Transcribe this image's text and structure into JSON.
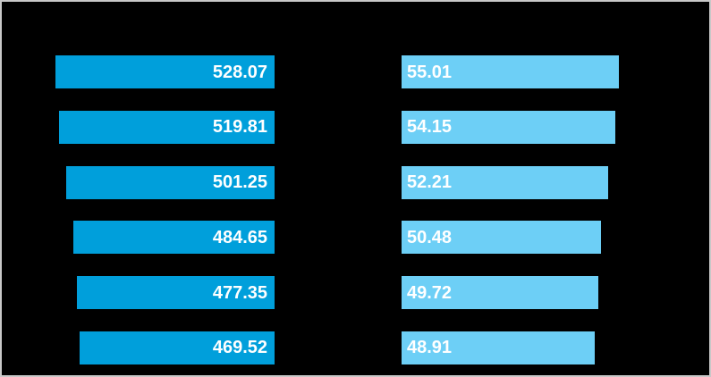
{
  "canvas": {
    "background_color": "#000000",
    "frame_border_color": "#c8c8c8"
  },
  "chart_data": {
    "type": "bar",
    "orientation": "horizontal",
    "layout": "two mirrored bar columns, black background, no visible title, axis or category labels",
    "rows": 6,
    "label_color": "#ffffff",
    "series": [
      {
        "name": "left",
        "bar_color": "#009fdb",
        "direction": "right-anchored",
        "label_align": "right-inside",
        "xlim": [
          0,
          528.07
        ],
        "values": [
          528.07,
          519.81,
          501.25,
          484.65,
          477.35,
          469.52
        ],
        "labels": [
          "528.07",
          "519.81",
          "501.25",
          "484.65",
          "477.35",
          "469.52"
        ]
      },
      {
        "name": "right",
        "bar_color": "#6dcff6",
        "direction": "left-anchored",
        "label_align": "left-inside",
        "xlim": [
          0,
          55.01
        ],
        "values": [
          55.01,
          54.15,
          52.21,
          50.48,
          49.72,
          48.91
        ],
        "labels": [
          "55.01",
          "54.15",
          "52.21",
          "50.48",
          "49.72",
          "48.91"
        ]
      }
    ]
  }
}
